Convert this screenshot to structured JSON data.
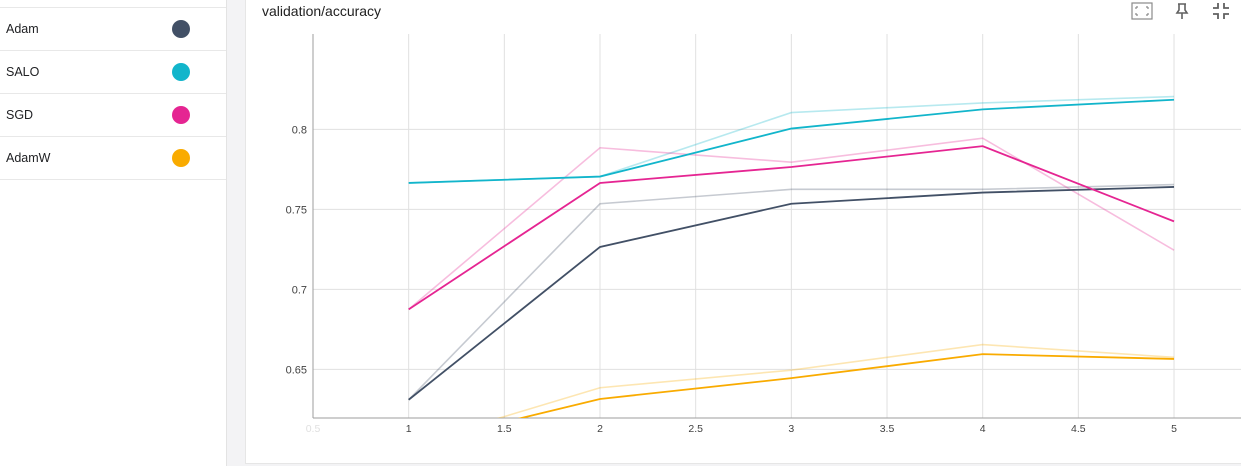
{
  "sidebar": {
    "runs": [
      {
        "label": "Adam",
        "color": "#425066"
      },
      {
        "label": "SALO",
        "color": "#12b5cb"
      },
      {
        "label": "SGD",
        "color": "#e52592"
      },
      {
        "label": "AdamW",
        "color": "#f9ab00"
      }
    ]
  },
  "card": {
    "title": "validation/accuracy",
    "toolbar": {
      "fit_icon": "fit-domain-icon",
      "pin_icon": "pin-icon",
      "collapse_icon": "collapse-icon"
    }
  },
  "chart_data": {
    "type": "line",
    "title": "validation/accuracy",
    "xlabel": "",
    "ylabel": "",
    "xlim": [
      0.5,
      5.35
    ],
    "ylim": [
      0.6196,
      0.8596
    ],
    "x_ticks": [
      {
        "value": 0.5,
        "label": "0.5",
        "faint": true
      },
      {
        "value": 1,
        "label": "1"
      },
      {
        "value": 1.5,
        "label": "1.5"
      },
      {
        "value": 2,
        "label": "2"
      },
      {
        "value": 2.5,
        "label": "2.5"
      },
      {
        "value": 3,
        "label": "3"
      },
      {
        "value": 3.5,
        "label": "3.5"
      },
      {
        "value": 4,
        "label": "4"
      },
      {
        "value": 4.5,
        "label": "4.5"
      },
      {
        "value": 5,
        "label": "5"
      }
    ],
    "y_ticks": [
      {
        "value": 0.65,
        "label": "0.65"
      },
      {
        "value": 0.7,
        "label": "0.7"
      },
      {
        "value": 0.75,
        "label": "0.75"
      },
      {
        "value": 0.8,
        "label": "0.8"
      }
    ],
    "grid": true,
    "legend": "left sidebar",
    "x": [
      1,
      2,
      3,
      4,
      5
    ],
    "series": [
      {
        "name": "Adam",
        "color": "#425066",
        "values": [
          0.631,
          0.7265,
          0.7535,
          0.7605,
          0.764
        ],
        "raw": [
          0.631,
          0.7535,
          0.7625,
          0.7625,
          0.7655
        ]
      },
      {
        "name": "SALO",
        "color": "#12b5cb",
        "values": [
          0.7665,
          0.7705,
          0.8005,
          0.8125,
          0.8185
        ],
        "raw": [
          0.7665,
          0.7705,
          0.8105,
          0.8165,
          0.8205
        ]
      },
      {
        "name": "SGD",
        "color": "#e52592",
        "values": [
          0.6875,
          0.7665,
          0.7765,
          0.7895,
          0.7425
        ],
        "raw": [
          0.6875,
          0.7885,
          0.7795,
          0.7945,
          0.7245
        ]
      },
      {
        "name": "AdamW",
        "color": "#f9ab00",
        "values": [
          0.6025,
          0.6315,
          0.6445,
          0.6595,
          0.6565
        ],
        "raw": [
          0.6025,
          0.6385,
          0.6495,
          0.6655,
          0.6575
        ]
      }
    ]
  }
}
